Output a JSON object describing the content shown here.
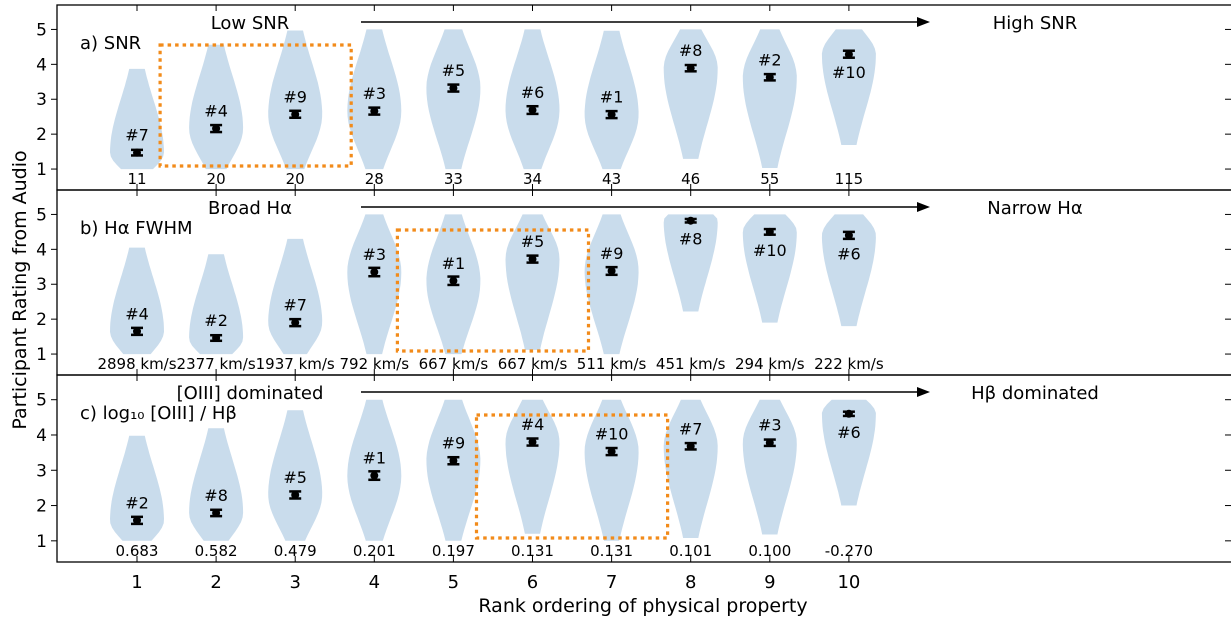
{
  "xlabel": "Rank ordering of physical property",
  "ylabel": "Participant Rating from Audio",
  "colors": {
    "violin": "#c9dcec",
    "box": "#f28b1a",
    "ink": "#000000"
  },
  "chart_data": [
    {
      "type": "violin",
      "panel_label": "a) SNR",
      "left_label": "Low SNR",
      "right_label": "High SNR",
      "categories": [
        1,
        2,
        3,
        4,
        5,
        6,
        7,
        8,
        9,
        10
      ],
      "ylim": [
        0.4,
        5.7
      ],
      "yticks": [
        1,
        2,
        3,
        4,
        5
      ],
      "means": [
        1.47,
        2.16,
        2.57,
        2.66,
        3.32,
        2.69,
        2.56,
        3.89,
        3.63,
        4.29
      ],
      "errors": [
        0.08,
        0.1,
        0.1,
        0.1,
        0.1,
        0.11,
        0.1,
        0.09,
        0.09,
        0.1
      ],
      "ids": [
        "#7",
        "#4",
        "#9",
        "#3",
        "#5",
        "#6",
        "#1",
        "#8",
        "#2",
        "#10"
      ],
      "property_values": [
        "11",
        "20",
        "20",
        "28",
        "33",
        "34",
        "43",
        "46",
        "55",
        "115"
      ],
      "highlight": [
        2,
        3
      ]
    },
    {
      "type": "violin",
      "panel_label": "b) Hα FWHM",
      "left_label": "Broad Hα",
      "right_label": "Narrow Hα",
      "categories": [
        1,
        2,
        3,
        4,
        5,
        6,
        7,
        8,
        9,
        10
      ],
      "ylim": [
        0.4,
        5.7
      ],
      "yticks": [
        1,
        2,
        3,
        4,
        5
      ],
      "means": [
        1.65,
        1.46,
        1.9,
        3.35,
        3.1,
        3.72,
        3.38,
        4.82,
        4.5,
        4.4
      ],
      "errors": [
        0.1,
        0.08,
        0.1,
        0.12,
        0.12,
        0.1,
        0.11,
        0.05,
        0.08,
        0.1
      ],
      "ids": [
        "#4",
        "#2",
        "#7",
        "#3",
        "#1",
        "#5",
        "#9",
        "#8",
        "#10",
        "#6"
      ],
      "property_values": [
        "2898 km/s",
        "2377 km/s",
        "1937 km/s",
        "792 km/s",
        "667 km/s",
        "667 km/s",
        "511 km/s",
        "451 km/s",
        "294 km/s",
        "222 km/s"
      ],
      "highlight": [
        5,
        6
      ]
    },
    {
      "type": "violin",
      "panel_label": "c) log₁₀ [OIII] / Hβ",
      "left_label": "[OIII] dominated",
      "right_label": "Hβ dominated",
      "categories": [
        1,
        2,
        3,
        4,
        5,
        6,
        7,
        8,
        9,
        10
      ],
      "ylim": [
        0.4,
        5.7
      ],
      "yticks": [
        1,
        2,
        3,
        4,
        5
      ],
      "means": [
        1.58,
        1.79,
        2.3,
        2.85,
        3.27,
        3.8,
        3.53,
        3.68,
        3.78,
        4.6
      ],
      "errors": [
        0.1,
        0.09,
        0.1,
        0.12,
        0.1,
        0.1,
        0.1,
        0.09,
        0.09,
        0.06
      ],
      "ids": [
        "#2",
        "#8",
        "#5",
        "#1",
        "#9",
        "#4",
        "#10",
        "#7",
        "#3",
        "#6"
      ],
      "property_values": [
        "0.683",
        "0.582",
        "0.479",
        "0.201",
        "0.197",
        "0.131",
        "0.131",
        "0.101",
        "0.100",
        "-0.270"
      ],
      "highlight": [
        6,
        7
      ]
    }
  ]
}
